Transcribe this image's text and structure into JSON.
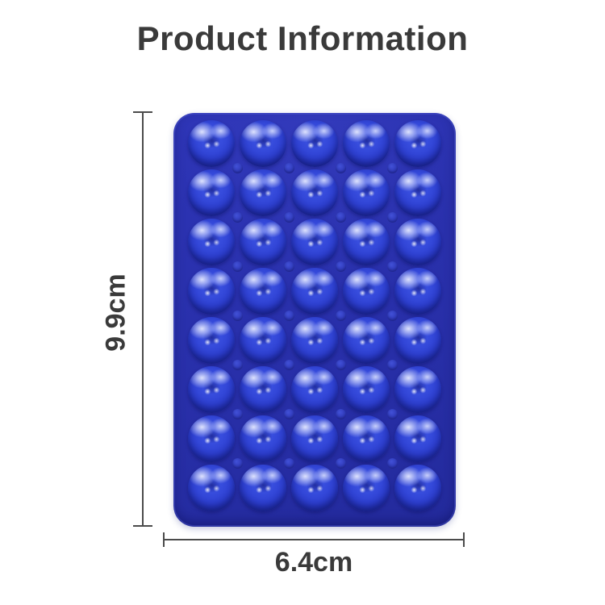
{
  "title": "Product Information",
  "dimensions": {
    "height_label": "9.9cm",
    "width_label": "6.4cm"
  },
  "product": {
    "description": "blue-silicone-suction-cup-pad",
    "grid": {
      "rows": 8,
      "cols": 5
    },
    "colors": {
      "pad_base": "#282fa9",
      "cup_blue": "#3347d8",
      "cup_highlight": "#dde1fa",
      "dimension_line": "#4b4b4b",
      "text": "#3a3a3a",
      "background": "#ffffff"
    }
  }
}
